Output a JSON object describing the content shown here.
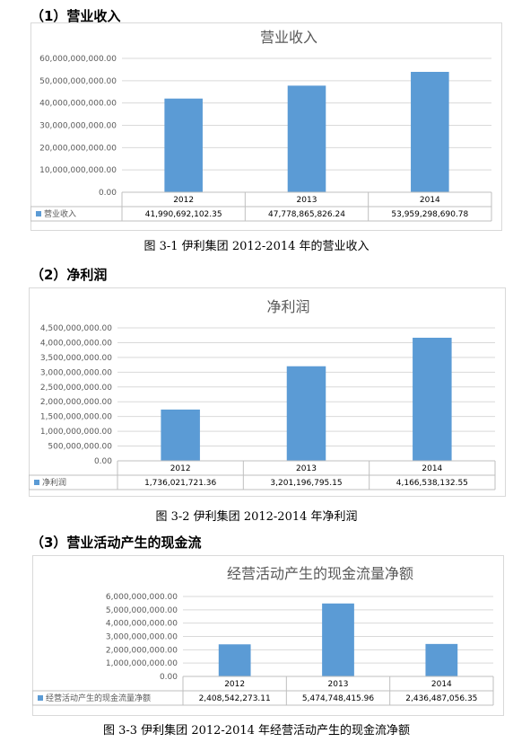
{
  "sections": [
    {
      "heading": "（1）营业收入",
      "caption": "图 3-1 伊利集团 2012-2014 年的营业收入",
      "chart_title": "营业收入",
      "series_name": "营业收入",
      "y_ticks": [
        "60,000,000,000.00",
        "50,000,000,000.00",
        "40,000,000,000.00",
        "30,000,000,000.00",
        "20,000,000,000.00",
        "10,000,000,000.00",
        "0.00"
      ],
      "table_values": [
        "41,990,692,102.35",
        "47,778,865,826.24",
        "53,959,298,690.78"
      ]
    },
    {
      "heading": "（2）净利润",
      "caption": "图 3-2 伊利集团 2012-2014 年净利润",
      "chart_title": "净利润",
      "series_name": "净利润",
      "y_ticks": [
        "4,500,000,000.00",
        "4,000,000,000.00",
        "3,500,000,000.00",
        "3,000,000,000.00",
        "2,500,000,000.00",
        "2,000,000,000.00",
        "1,500,000,000.00",
        "1,000,000,000.00",
        "500,000,000.00",
        "0.00"
      ],
      "table_values": [
        "1,736,021,721.36",
        "3,201,196,795.15",
        "4,166,538,132.55"
      ]
    },
    {
      "heading": "（3）营业活动产生的现金流",
      "caption": "图 3-3 伊利集团 2012-2014 年经营活动产生的现金流净额",
      "chart_title": "经营活动产生的现金流量净额",
      "series_name": "经营活动产生的现金流量净额",
      "y_ticks": [
        "6,000,000,000.00",
        "5,000,000,000.00",
        "4,000,000,000.00",
        "3,000,000,000.00",
        "2,000,000,000.00",
        "1,000,000,000.00",
        "0.00"
      ],
      "table_values": [
        "2,408,542,273.11",
        "5,474,748,415.96",
        "2,436,487,056.35"
      ]
    }
  ],
  "chart_data": [
    {
      "type": "bar",
      "title": "营业收入",
      "categories": [
        "2012",
        "2013",
        "2014"
      ],
      "series": [
        {
          "name": "营业收入",
          "values": [
            41990692102.35,
            47778865826.24,
            53959298690.78
          ]
        }
      ],
      "ylim": [
        0,
        60000000000
      ],
      "ystep": 10000000000,
      "grid": true,
      "legend": "data-table",
      "color": "#5b9bd5"
    },
    {
      "type": "bar",
      "title": "净利润",
      "categories": [
        "2012",
        "2013",
        "2014"
      ],
      "series": [
        {
          "name": "净利润",
          "values": [
            1736021721.36,
            3201196795.15,
            4166538132.55
          ]
        }
      ],
      "ylim": [
        0,
        4500000000
      ],
      "ystep": 500000000,
      "grid": true,
      "legend": "data-table",
      "color": "#5b9bd5"
    },
    {
      "type": "bar",
      "title": "经营活动产生的现金流量净额",
      "categories": [
        "2012",
        "2013",
        "2014"
      ],
      "series": [
        {
          "name": "经营活动产生的现金流量净额",
          "values": [
            2408542273.11,
            5474748415.96,
            2436487056.35
          ]
        }
      ],
      "ylim": [
        0,
        6000000000
      ],
      "ystep": 1000000000,
      "grid": true,
      "legend": "data-table",
      "color": "#5b9bd5"
    }
  ]
}
